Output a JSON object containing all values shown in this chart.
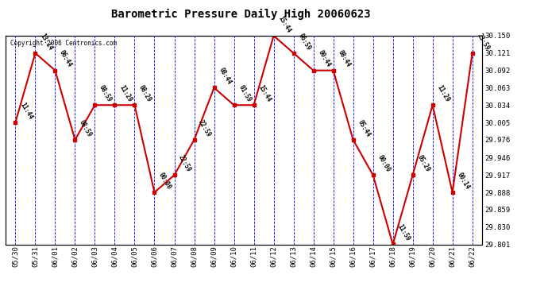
{
  "title": "Barometric Pressure Daily High 20060623",
  "copyright": "Copyright 2006 Centronics.com",
  "background_color": "#ffffff",
  "plot_bg_color": "#ffffff",
  "grid_color": "#0000ff",
  "line_color": "#cc0000",
  "marker_color": "#cc0000",
  "x_labels": [
    "05/30",
    "05/31",
    "06/01",
    "06/02",
    "06/03",
    "06/04",
    "06/05",
    "06/06",
    "06/07",
    "06/08",
    "06/09",
    "06/10",
    "06/11",
    "06/12",
    "06/13",
    "06/14",
    "06/15",
    "06/16",
    "06/17",
    "06/18",
    "06/19",
    "06/20",
    "06/21",
    "06/22"
  ],
  "y_values": [
    30.005,
    30.121,
    30.092,
    29.976,
    30.034,
    30.034,
    30.034,
    29.888,
    29.917,
    29.976,
    30.063,
    30.034,
    30.034,
    30.15,
    30.121,
    30.092,
    30.092,
    29.976,
    29.917,
    29.801,
    29.917,
    30.034,
    29.888,
    30.121
  ],
  "annotations": [
    {
      "idx": 0,
      "label": "11:44"
    },
    {
      "idx": 1,
      "label": "13:14"
    },
    {
      "idx": 2,
      "label": "06:44"
    },
    {
      "idx": 3,
      "label": "08:59"
    },
    {
      "idx": 4,
      "label": "08:59"
    },
    {
      "idx": 5,
      "label": "11:29"
    },
    {
      "idx": 6,
      "label": "08:29"
    },
    {
      "idx": 7,
      "label": "00:00"
    },
    {
      "idx": 8,
      "label": "22:59"
    },
    {
      "idx": 9,
      "label": "22:59"
    },
    {
      "idx": 10,
      "label": "08:44"
    },
    {
      "idx": 11,
      "label": "01:59"
    },
    {
      "idx": 12,
      "label": "15:44"
    },
    {
      "idx": 13,
      "label": "15:44"
    },
    {
      "idx": 14,
      "label": "06:59"
    },
    {
      "idx": 15,
      "label": "00:44"
    },
    {
      "idx": 16,
      "label": "08:44"
    },
    {
      "idx": 17,
      "label": "05:44"
    },
    {
      "idx": 18,
      "label": "00:00"
    },
    {
      "idx": 19,
      "label": "11:59"
    },
    {
      "idx": 20,
      "label": "05:29"
    },
    {
      "idx": 21,
      "label": "11:29"
    },
    {
      "idx": 22,
      "label": "00:14"
    },
    {
      "idx": 23,
      "label": "23:59"
    }
  ],
  "ylim": [
    29.801,
    30.15
  ],
  "yticks": [
    29.801,
    29.83,
    29.859,
    29.888,
    29.917,
    29.946,
    29.976,
    30.005,
    30.034,
    30.063,
    30.092,
    30.121,
    30.15
  ]
}
